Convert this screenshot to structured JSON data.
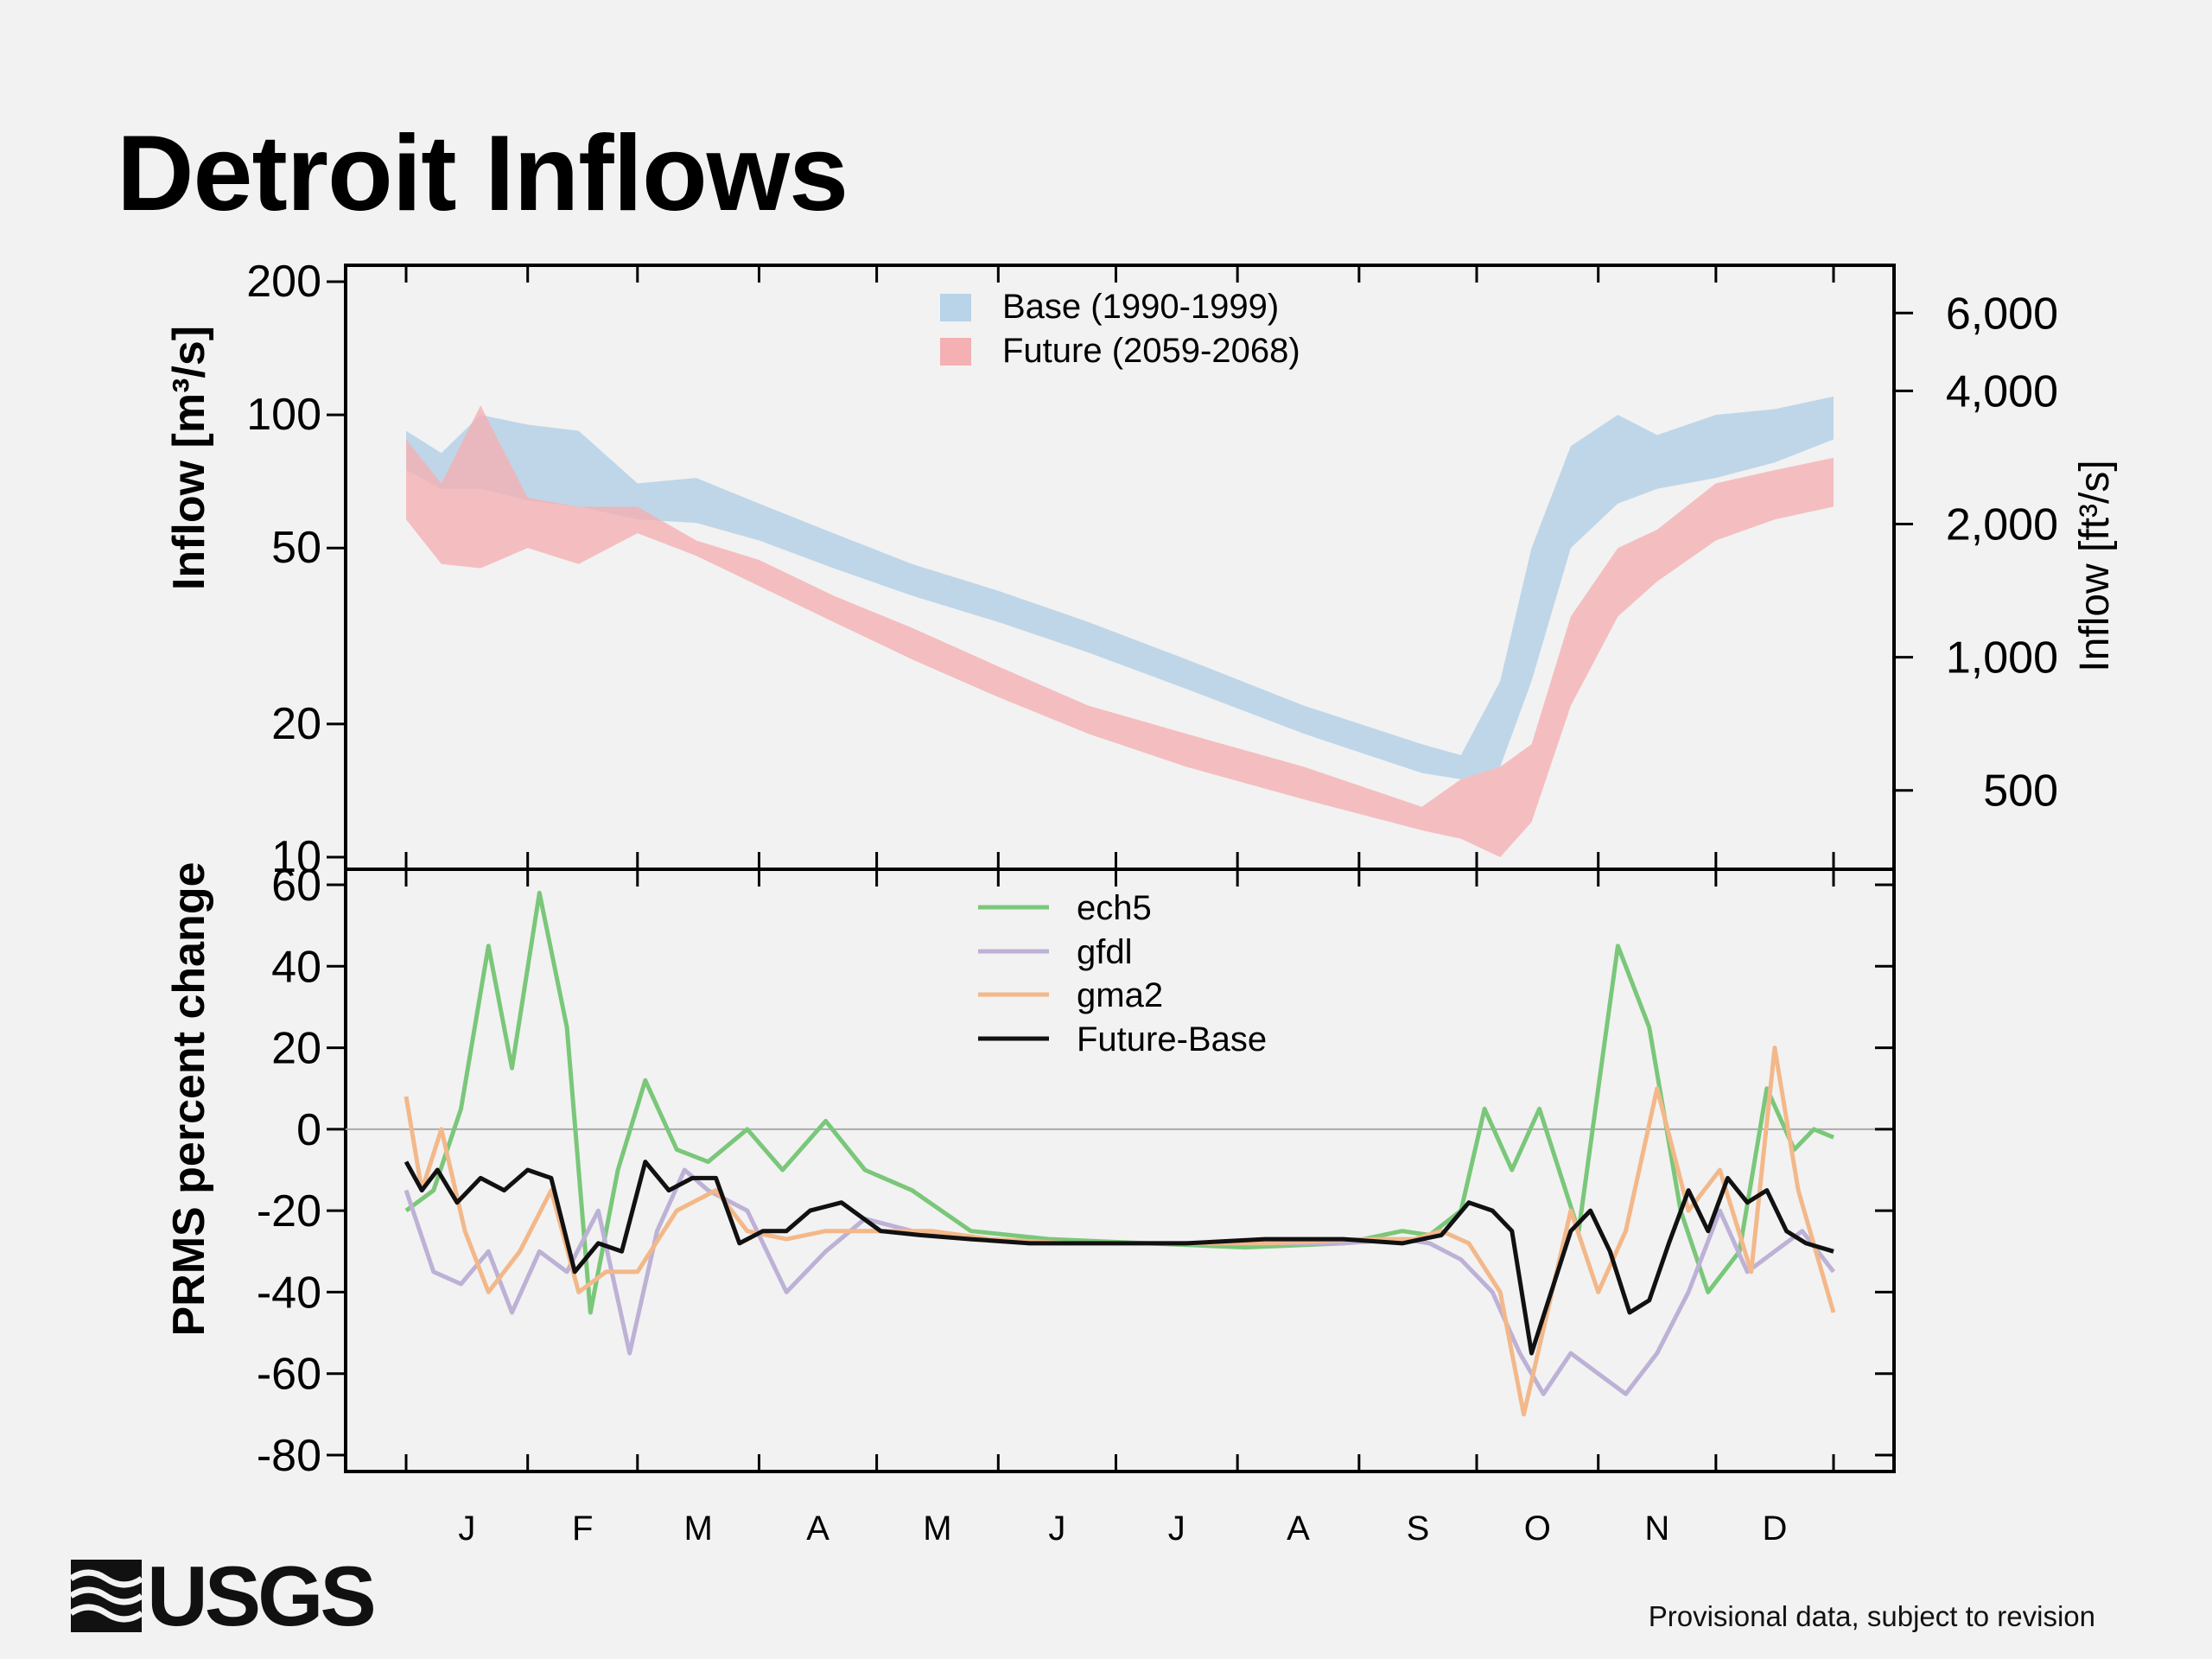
{
  "slide": {
    "title": "Detroit Inflows",
    "footnote": "Provisional data, subject to revision",
    "logo_text": "USGS"
  },
  "chart_data": [
    {
      "type": "area",
      "ylabel_left": "Inflow [m³/s]",
      "ylabel_right": "Inflow [ft³/s]",
      "yscale": "log",
      "ylim": [
        10,
        200
      ],
      "yticks_left": [
        10,
        20,
        50,
        100,
        200
      ],
      "yticks_right": [
        {
          "value": 500,
          "label": "500"
        },
        {
          "value": 1000,
          "label": "1,000"
        },
        {
          "value": 2000,
          "label": "2,000"
        },
        {
          "value": 4000,
          "label": "4,000"
        },
        {
          "value": 6000,
          "label": "6,000"
        }
      ],
      "months": [
        "J",
        "F",
        "M",
        "A",
        "M",
        "J",
        "J",
        "A",
        "S",
        "O",
        "N",
        "D"
      ],
      "legend_position": "top-center",
      "series": [
        {
          "name": "Base (1990-1999)",
          "color": "#b9d3e8",
          "day": [
            1,
            10,
            20,
            32,
            45,
            60,
            75,
            91,
            110,
            130,
            152,
            175,
            200,
            230,
            260,
            270,
            280,
            288,
            298,
            310,
            320,
            335,
            350,
            365
          ],
          "low": [
            75,
            68,
            68,
            64,
            62,
            58,
            57,
            52,
            45,
            39,
            34,
            29,
            24,
            19,
            15.5,
            15,
            16,
            25,
            50,
            63,
            68,
            72,
            78,
            88
          ],
          "high": [
            92,
            82,
            100,
            95,
            92,
            70,
            72,
            63,
            54,
            46,
            40,
            34,
            28,
            22,
            18,
            17,
            25,
            50,
            85,
            100,
            90,
            100,
            103,
            110
          ]
        },
        {
          "name": "Future (2059-2068)",
          "color": "#f4b0b3",
          "day": [
            1,
            10,
            20,
            32,
            45,
            60,
            75,
            91,
            110,
            130,
            152,
            175,
            200,
            230,
            260,
            270,
            280,
            288,
            298,
            310,
            320,
            335,
            350,
            365
          ],
          "low": [
            58,
            46,
            45,
            50,
            46,
            54,
            48,
            41,
            34,
            28,
            23,
            19,
            16,
            13.5,
            11.5,
            11,
            10,
            12,
            22,
            35,
            42,
            52,
            58,
            62
          ],
          "high": [
            88,
            70,
            105,
            65,
            62,
            62,
            52,
            47,
            39,
            33,
            27,
            22,
            19,
            16,
            13,
            15,
            16,
            18,
            35,
            50,
            55,
            70,
            75,
            80
          ]
        }
      ]
    },
    {
      "type": "line",
      "ylabel": "PRMS percent change",
      "ylim": [
        -80,
        60
      ],
      "yticks": [
        -80,
        -60,
        -40,
        -20,
        0,
        20,
        40,
        60
      ],
      "months": [
        "J",
        "F",
        "M",
        "A",
        "M",
        "J",
        "J",
        "A",
        "S",
        "O",
        "N",
        "D"
      ],
      "legend_position": "top-center",
      "series": [
        {
          "name": "ech5",
          "color": "#7ac77a",
          "day": [
            1,
            8,
            15,
            22,
            28,
            35,
            42,
            48,
            55,
            62,
            70,
            78,
            88,
            97,
            108,
            118,
            130,
            145,
            165,
            190,
            215,
            240,
            255,
            262,
            270,
            276,
            283,
            290,
            300,
            310,
            318,
            326,
            333,
            341,
            348,
            355,
            360,
            365
          ],
          "values": [
            -20,
            -15,
            5,
            45,
            15,
            58,
            25,
            -45,
            -10,
            12,
            -5,
            -8,
            0,
            -10,
            2,
            -10,
            -15,
            -25,
            -27,
            -28,
            -29,
            -28,
            -25,
            -26,
            -20,
            5,
            -10,
            5,
            -25,
            45,
            25,
            -20,
            -40,
            -30,
            10,
            -5,
            0,
            -2
          ]
        },
        {
          "name": "gfdl",
          "color": "#bdb1d6",
          "day": [
            1,
            8,
            15,
            22,
            28,
            35,
            42,
            50,
            58,
            65,
            72,
            78,
            88,
            98,
            108,
            118,
            130,
            145,
            165,
            190,
            215,
            240,
            255,
            262,
            270,
            278,
            285,
            291,
            298,
            305,
            312,
            320,
            328,
            336,
            343,
            350,
            357,
            365
          ],
          "values": [
            -15,
            -35,
            -38,
            -30,
            -45,
            -30,
            -35,
            -20,
            -55,
            -25,
            -10,
            -15,
            -20,
            -40,
            -30,
            -22,
            -25,
            -27,
            -28,
            -28,
            -28,
            -28,
            -27,
            -28,
            -32,
            -40,
            -55,
            -65,
            -55,
            -60,
            -65,
            -55,
            -40,
            -20,
            -35,
            -30,
            -25,
            -35
          ]
        },
        {
          "name": "gma2",
          "color": "#f3b88a",
          "day": [
            1,
            5,
            10,
            16,
            22,
            30,
            38,
            45,
            52,
            60,
            70,
            80,
            88,
            98,
            108,
            120,
            135,
            150,
            170,
            195,
            220,
            245,
            258,
            265,
            272,
            280,
            286,
            292,
            298,
            305,
            312,
            320,
            328,
            336,
            344,
            350,
            356,
            365
          ],
          "values": [
            8,
            -15,
            0,
            -25,
            -40,
            -30,
            -15,
            -40,
            -35,
            -35,
            -20,
            -15,
            -25,
            -27,
            -25,
            -25,
            -25,
            -27,
            -28,
            -28,
            -28,
            -27,
            -27,
            -25,
            -28,
            -40,
            -70,
            -45,
            -20,
            -40,
            -25,
            10,
            -20,
            -10,
            -35,
            20,
            -15,
            -45
          ]
        },
        {
          "name": "Future-Base",
          "color": "#111111",
          "day": [
            1,
            5,
            9,
            14,
            20,
            26,
            32,
            38,
            44,
            50,
            56,
            62,
            68,
            74,
            80,
            86,
            92,
            98,
            104,
            112,
            122,
            132,
            145,
            160,
            180,
            200,
            220,
            240,
            255,
            265,
            272,
            278,
            283,
            288,
            293,
            298,
            303,
            308,
            313,
            318,
            323,
            328,
            333,
            338,
            343,
            348,
            353,
            358,
            365
          ],
          "values": [
            -8,
            -15,
            -10,
            -18,
            -12,
            -15,
            -10,
            -12,
            -35,
            -28,
            -30,
            -8,
            -15,
            -12,
            -12,
            -28,
            -25,
            -25,
            -20,
            -18,
            -25,
            -26,
            -27,
            -28,
            -28,
            -28,
            -27,
            -27,
            -28,
            -26,
            -18,
            -20,
            -25,
            -55,
            -40,
            -25,
            -20,
            -30,
            -45,
            -42,
            -28,
            -15,
            -25,
            -12,
            -18,
            -15,
            -25,
            -28,
            -30
          ]
        }
      ]
    }
  ]
}
